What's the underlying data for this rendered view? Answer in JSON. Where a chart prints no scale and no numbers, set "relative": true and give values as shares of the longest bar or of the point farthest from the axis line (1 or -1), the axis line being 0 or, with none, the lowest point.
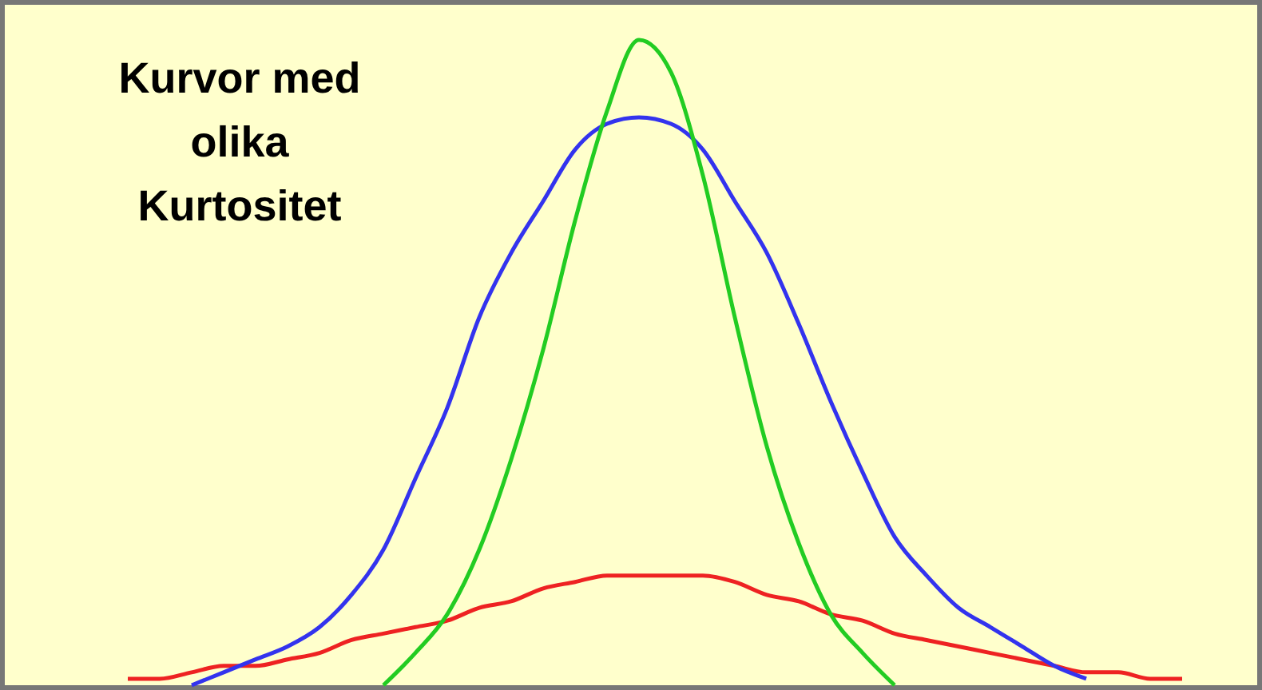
{
  "chart_data": {
    "type": "line",
    "title": "Kurvor med olika Kurtositet",
    "relative": true,
    "grid": false,
    "marker": "none",
    "line_style": "solid",
    "categories": [
      null,
      null,
      null,
      null,
      null,
      null,
      null,
      null,
      null,
      null,
      null,
      null,
      null,
      null,
      null,
      null,
      null,
      null,
      null,
      null,
      null,
      null,
      null,
      null,
      null,
      null,
      null,
      null,
      null,
      null,
      null,
      null,
      null,
      null,
      null,
      null,
      null
    ],
    "series": [
      {
        "color": "#ee2222",
        "values": [
          null,
          null,
          0.01,
          0.01,
          0.02,
          0.03,
          0.03,
          0.04,
          0.05,
          0.07,
          0.08,
          0.09,
          0.1,
          0.12,
          0.13,
          0.15,
          0.16,
          0.17,
          0.17,
          0.17,
          0.17,
          0.16,
          0.14,
          0.13,
          0.11,
          0.1,
          0.08,
          0.07,
          0.06,
          0.05,
          0.04,
          0.03,
          0.02,
          0.02,
          0.01,
          0.01,
          null
        ]
      },
      {
        "color": "#3333ee",
        "values": [
          null,
          null,
          null,
          null,
          0.0,
          0.02,
          0.04,
          0.06,
          0.09,
          0.14,
          0.21,
          0.32,
          0.43,
          0.57,
          0.67,
          0.75,
          0.83,
          0.87,
          0.88,
          0.87,
          0.83,
          0.75,
          0.67,
          0.56,
          0.44,
          0.33,
          0.23,
          0.17,
          0.12,
          0.09,
          0.06,
          0.03,
          0.01,
          null,
          null,
          null,
          null
        ]
      },
      {
        "color": "#22cc22",
        "values": [
          null,
          null,
          null,
          null,
          null,
          null,
          null,
          null,
          null,
          null,
          0.0,
          0.05,
          0.11,
          0.21,
          0.35,
          0.52,
          0.72,
          0.89,
          1,
          0.95,
          0.79,
          0.57,
          0.37,
          0.22,
          0.11,
          0.05,
          0.0,
          null,
          null,
          null,
          null,
          null,
          null,
          null,
          null,
          null,
          null
        ]
      }
    ]
  }
}
